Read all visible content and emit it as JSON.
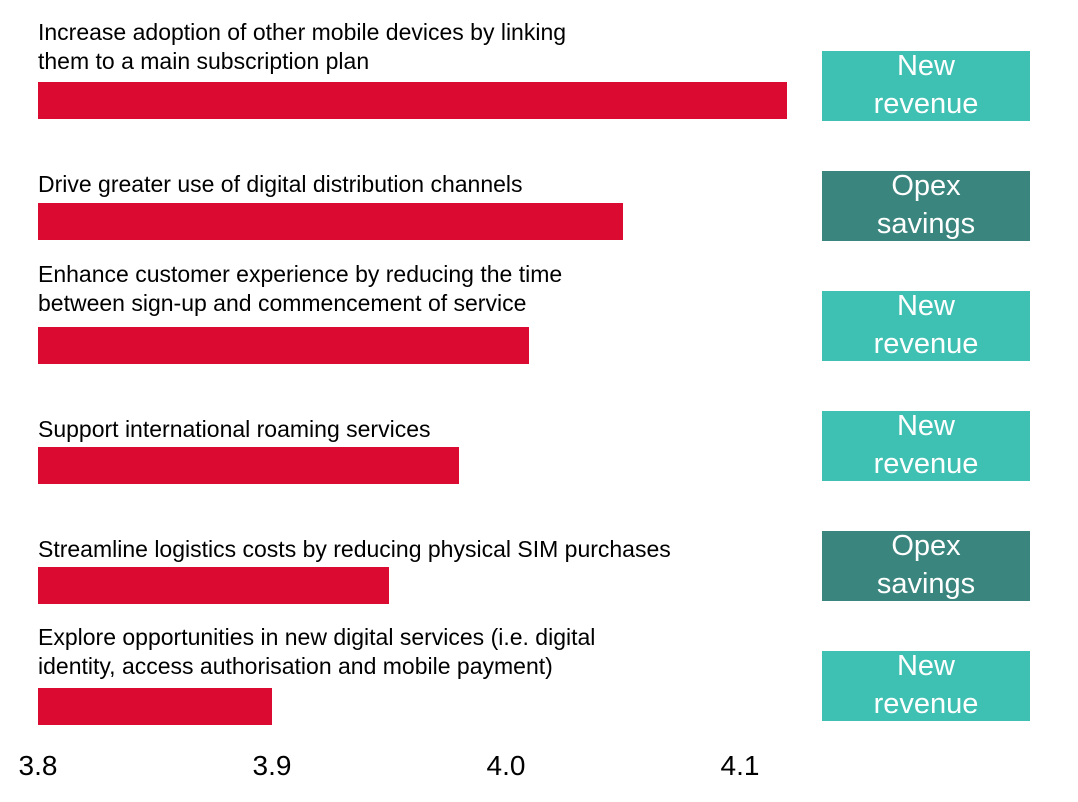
{
  "chart_data": {
    "type": "bar",
    "orientation": "horizontal",
    "title": "",
    "xlabel": "",
    "ylabel": "",
    "grid": false,
    "legend_position": "right-of-each-bar",
    "axis": {
      "min": 3.8,
      "max": 4.15,
      "tick_values": [
        3.8,
        3.9,
        4.0,
        4.1
      ]
    },
    "x_ticks": [
      "3.8",
      "3.9",
      "4.0",
      "4.1"
    ],
    "categories": [
      "Increase adoption of other mobile devices by linking them to a main subscription plan",
      "Drive greater use of digital distribution channels",
      "Enhance customer experience by reducing the time between sign-up and commencement of service",
      "Support international roaming services",
      "Streamline logistics costs by reducing physical SIM purchases",
      "Explore opportunities in new digital services (i.e. digital identity, access authorisation and mobile payment)"
    ],
    "rows": [
      {
        "label": "Increase adoption of other mobile devices by linking\nthem to a main subscription plan",
        "value": 4.12,
        "tag": "New revenue",
        "tag_type": "new_revenue"
      },
      {
        "label": "Drive greater use of digital distribution channels",
        "value": 4.05,
        "tag": "Opex savings",
        "tag_type": "opex_savings"
      },
      {
        "label": "Enhance customer experience by reducing the time\nbetween sign-up and commencement of service",
        "value": 4.01,
        "tag": "New revenue",
        "tag_type": "new_revenue"
      },
      {
        "label": "Support international roaming services",
        "value": 3.98,
        "tag": "New revenue",
        "tag_type": "new_revenue"
      },
      {
        "label": "Streamline logistics costs by reducing physical SIM purchases",
        "value": 3.95,
        "tag": "Opex savings",
        "tag_type": "opex_savings"
      },
      {
        "label": "Explore opportunities in new digital services (i.e. digital\nidentity, access authorisation and mobile payment)",
        "value": 3.9,
        "tag": "New revenue",
        "tag_type": "new_revenue"
      }
    ],
    "legend": [
      {
        "label": "New revenue",
        "color": "#3EC1B3"
      },
      {
        "label": "Opex savings",
        "color": "#3A867F"
      }
    ],
    "colors": {
      "bar": "#DB0A30",
      "new_revenue": "#3EC1B3",
      "opex_savings": "#3A867F",
      "badge_text": "#FFFFFF",
      "label_text": "#000000"
    }
  }
}
